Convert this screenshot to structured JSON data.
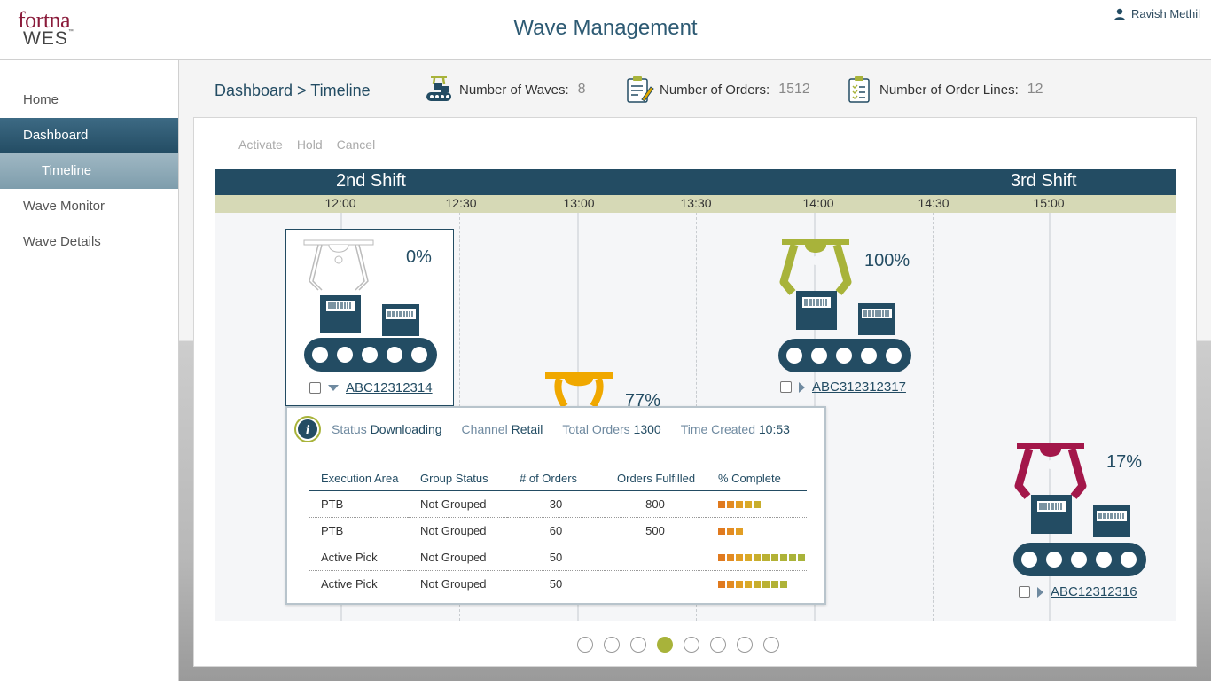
{
  "header": {
    "logo_top": "fortna",
    "logo_bottom": "WES",
    "logo_tm": "™",
    "title": "Wave Management",
    "user_name": "Ravish Methil"
  },
  "sidebar": {
    "items": [
      {
        "label": "Home"
      },
      {
        "label": "Dashboard"
      },
      {
        "label": "Timeline"
      },
      {
        "label": "Wave Monitor"
      },
      {
        "label": "Wave Details"
      }
    ]
  },
  "breadcrumb": "Dashboard > Timeline",
  "stats": {
    "waves_label": "Number of Waves:",
    "waves_value": "8",
    "orders_label": "Number of Orders:",
    "orders_value": "1512",
    "lines_label": "Number of Order Lines:",
    "lines_value": "12"
  },
  "actions": {
    "activate": "Activate",
    "hold": "Hold",
    "cancel": "Cancel"
  },
  "timeline": {
    "shifts": [
      "2nd Shift",
      "3rd Shift"
    ],
    "times": [
      "12:00",
      "12:30",
      "13:00",
      "13:30",
      "14:00",
      "14:30",
      "15:00"
    ]
  },
  "waves": [
    {
      "id": "ABC12312314",
      "percent": "0%",
      "color": "#ffffff"
    },
    {
      "id": "",
      "percent": "77%",
      "color": "#f0a800"
    },
    {
      "id": "ABC312312317",
      "percent": "100%",
      "color": "#a8b33a"
    },
    {
      "id": "ABC12312316",
      "percent": "17%",
      "color": "#a3174a"
    }
  ],
  "popup": {
    "status_label": "Status",
    "status_value": "Downloading",
    "channel_label": "Channel",
    "channel_value": "Retail",
    "total_label": "Total Orders",
    "total_value": "1300",
    "time_label": "Time Created",
    "time_value": "10:53",
    "columns": [
      "Execution Area",
      "Group Status",
      "# of Orders",
      "Orders Fulfilled",
      "% Complete"
    ],
    "rows": [
      {
        "area": "PTB",
        "group": "Not Grouped",
        "orders": "30",
        "fulfilled": "800",
        "complete": 5
      },
      {
        "area": "PTB",
        "group": "Not Grouped",
        "orders": "60",
        "fulfilled": "500",
        "complete": 3
      },
      {
        "area": "Active Pick",
        "group": "Not Grouped",
        "orders": "50",
        "fulfilled": "",
        "complete": 10
      },
      {
        "area": "Active Pick",
        "group": "Not Grouped",
        "orders": "50",
        "fulfilled": "",
        "complete": 8
      }
    ]
  },
  "pagination": {
    "count": 8,
    "active": 3
  },
  "colors": {
    "navy": "#234c63",
    "bar_start": "#e07a1f",
    "bar_end": "#a8b33a"
  }
}
